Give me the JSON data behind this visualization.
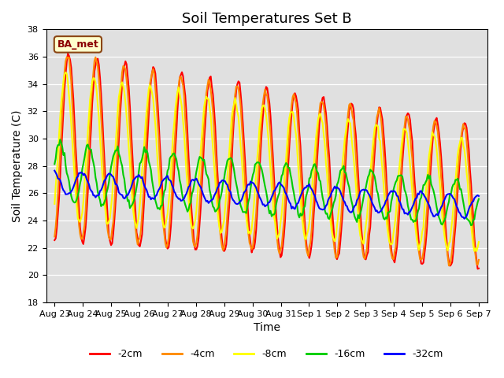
{
  "title": "Soil Temperatures Set B",
  "xlabel": "Time",
  "ylabel": "Soil Temperature (C)",
  "ylim": [
    18,
    38
  ],
  "yticks": [
    18,
    20,
    22,
    24,
    26,
    28,
    30,
    32,
    34,
    36,
    38
  ],
  "xtick_labels": [
    "Aug 23",
    "Aug 24",
    "Aug 25",
    "Aug 26",
    "Aug 27",
    "Aug 28",
    "Aug 29",
    "Aug 30",
    "Aug 31",
    "Sep 1",
    "Sep 2",
    "Sep 3",
    "Sep 4",
    "Sep 5",
    "Sep 6",
    "Sep 7"
  ],
  "legend_label": "BA_met",
  "series_labels": [
    "-2cm",
    "-4cm",
    "-8cm",
    "-16cm",
    "-32cm"
  ],
  "series_colors": [
    "#ff0000",
    "#ff8800",
    "#ffff00",
    "#00cc00",
    "#0000ff"
  ],
  "background_color": "#e0e0e0",
  "title_fontsize": 13,
  "axis_label_fontsize": 10,
  "tick_fontsize": 8,
  "n_points": 384
}
